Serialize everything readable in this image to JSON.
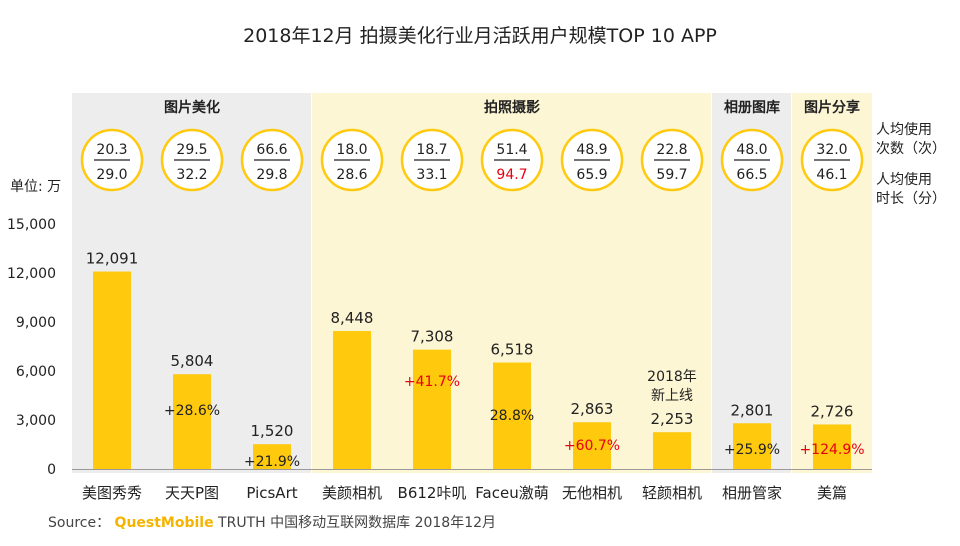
{
  "title": "2018年12月 拍摄美化行业月活跃用户规模TOP 10 APP",
  "unit_label": "单位: 万",
  "legend_top": [
    "人均使用",
    "次数（次）"
  ],
  "legend_bottom": [
    "人均使用",
    "时长（分）"
  ],
  "groups": [
    {
      "label": "图片美化",
      "from": 0,
      "to": 2,
      "fill": "#ededed"
    },
    {
      "label": "拍照摄影",
      "from": 3,
      "to": 7,
      "fill": "#fdf6d4"
    },
    {
      "label": "相册图库",
      "from": 8,
      "to": 8,
      "fill": "#ededed"
    },
    {
      "label": "图片分享",
      "from": 9,
      "to": 9,
      "fill": "#fdf6d4"
    }
  ],
  "badges": [
    {
      "times": "20.3",
      "duration": "29.0",
      "duration_red": false
    },
    {
      "times": "29.5",
      "duration": "32.2",
      "duration_red": false
    },
    {
      "times": "66.6",
      "duration": "29.8",
      "duration_red": false
    },
    {
      "times": "18.0",
      "duration": "28.6",
      "duration_red": false
    },
    {
      "times": "18.7",
      "duration": "33.1",
      "duration_red": false
    },
    {
      "times": "51.4",
      "duration": "94.7",
      "duration_red": true
    },
    {
      "times": "48.9",
      "duration": "65.9",
      "duration_red": false
    },
    {
      "times": "22.8",
      "duration": "59.7",
      "duration_red": false
    },
    {
      "times": "48.0",
      "duration": "66.5",
      "duration_red": false
    },
    {
      "times": "32.0",
      "duration": "46.1",
      "duration_red": false
    }
  ],
  "colors": {
    "bar": "#ffc90e",
    "badge_ring": "#ffc90e",
    "growth_red": "#e60012",
    "growth_black": "#222222"
  },
  "chart_data": {
    "type": "bar",
    "categories": [
      "美图秀秀",
      "天天P图",
      "PicsArt",
      "美颜相机",
      "B612咔叽",
      "Faceu激萌",
      "无他相机",
      "轻颜相机",
      "相册管家",
      "美篇"
    ],
    "values": [
      12091,
      5804,
      1520,
      8448,
      7308,
      6518,
      2863,
      2253,
      2801,
      2726
    ],
    "value_labels": [
      "12,091",
      "5,804",
      "1,520",
      "8,448",
      "7,308",
      "6,518",
      "2,863",
      "2,253",
      "2,801",
      "2,726"
    ],
    "growth": [
      "",
      "+28.6%",
      "+21.9%",
      "",
      "+41.7%",
      "28.8%",
      "+60.7%",
      "",
      "+25.9%",
      "+124.9%"
    ],
    "growth_red": [
      false,
      false,
      false,
      false,
      true,
      false,
      true,
      false,
      false,
      true
    ],
    "annotations": [
      {
        "category": "轻颜相机",
        "lines": [
          "2018年",
          "新上线"
        ]
      }
    ],
    "ylim": [
      0,
      15000
    ],
    "yticks": [
      "0",
      "3,000",
      "6,000",
      "9,000",
      "12,000",
      "15,000"
    ],
    "ytick_values": [
      0,
      3000,
      6000,
      9000,
      12000,
      15000
    ],
    "grid": false
  },
  "source": {
    "prefix": "Source：",
    "brand": "QuestMobile",
    "rest": " TRUTH 中国移动互联网数据库 2018年12月"
  }
}
